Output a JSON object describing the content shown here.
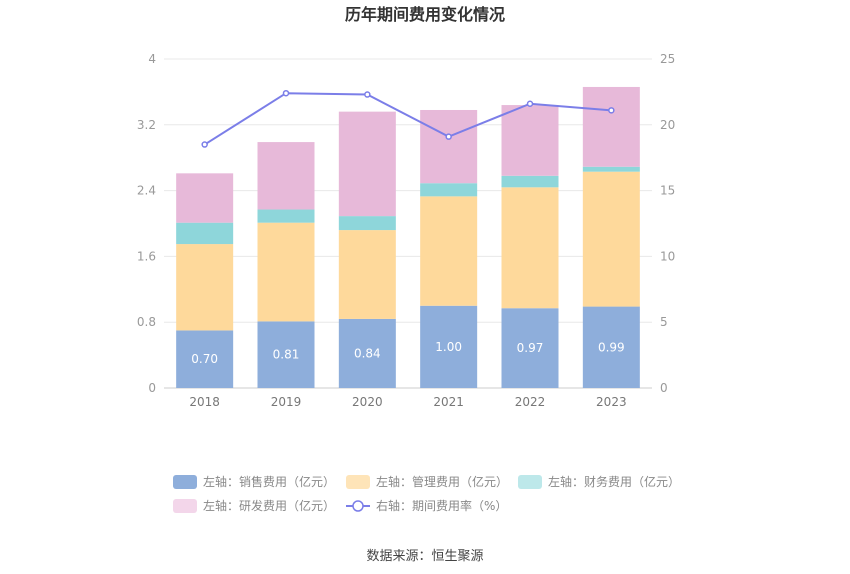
{
  "chart_data": {
    "type": "bar",
    "title": "历年期间费用变化情况",
    "categories": [
      "2018",
      "2019",
      "2020",
      "2021",
      "2022",
      "2023"
    ],
    "left_axis": {
      "ylim": [
        0,
        4
      ],
      "ticks": [
        "0",
        "0.8",
        "1.6",
        "2.4",
        "3.2",
        "4"
      ]
    },
    "right_axis": {
      "ylim": [
        0,
        25
      ],
      "ticks": [
        "0",
        "5",
        "10",
        "15",
        "20",
        "25"
      ]
    },
    "series": [
      {
        "name": "左轴：销售费用（亿元）",
        "axis": "left",
        "type": "bar",
        "color": "#8eaedb",
        "values": [
          0.7,
          0.81,
          0.84,
          1.0,
          0.97,
          0.99
        ],
        "labels": [
          "0.70",
          "0.81",
          "0.84",
          "1.00",
          "0.97",
          "0.99"
        ]
      },
      {
        "name": "左轴：管理费用（亿元）",
        "axis": "left",
        "type": "bar",
        "color": "#fed99b",
        "values": [
          1.05,
          1.2,
          1.08,
          1.33,
          1.47,
          1.64
        ]
      },
      {
        "name": "左轴：财务费用（亿元）",
        "axis": "left",
        "type": "bar",
        "color": "#8ed6da",
        "values": [
          0.26,
          0.16,
          0.17,
          0.16,
          0.14,
          0.06
        ]
      },
      {
        "name": "左轴：研发费用（亿元）",
        "axis": "left",
        "type": "bar",
        "color": "#e7b9d9",
        "values": [
          0.6,
          0.82,
          1.27,
          0.89,
          0.86,
          0.97
        ]
      },
      {
        "name": "右轴：期间费用率（%）",
        "axis": "right",
        "type": "line",
        "color": "#7b7ee8",
        "values": [
          18.5,
          22.4,
          22.3,
          19.1,
          21.6,
          21.1
        ]
      }
    ],
    "legend_position": "bottom",
    "grid": true
  },
  "colors": {
    "legend_sales": "#8eaedb",
    "legend_admin": "#fee4b8",
    "legend_finance": "#bde8ea",
    "legend_rd": "#f3d6ea"
  },
  "source": "数据来源：恒生聚源"
}
